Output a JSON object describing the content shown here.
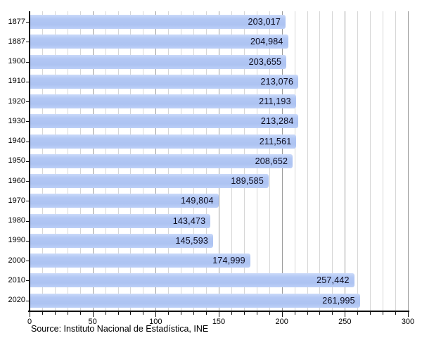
{
  "chart_data": {
    "type": "bar",
    "orientation": "horizontal",
    "title": "",
    "xlabel": "",
    "ylabel": "",
    "categories": [
      "1877",
      "1887",
      "1900",
      "1910",
      "1920",
      "1930",
      "1940",
      "1950",
      "1960",
      "1970",
      "1980",
      "1990",
      "2000",
      "2010",
      "2020"
    ],
    "values": [
      203017,
      204984,
      203655,
      213076,
      211193,
      213284,
      211561,
      208652,
      189585,
      149804,
      143473,
      145593,
      174999,
      257442,
      261995
    ],
    "value_labels": [
      "203,017",
      "204,984",
      "203,655",
      "213,076",
      "211,193",
      "213,284",
      "211,561",
      "208,652",
      "189,585",
      "149,804",
      "143,473",
      "145,593",
      "174,999",
      "257,442",
      "261,995"
    ],
    "x_axis": {
      "min": 0,
      "max": 300,
      "major_ticks": [
        0,
        50,
        100,
        150,
        200,
        250,
        300
      ],
      "major_tick_labels": [
        "0",
        "50",
        "100",
        "150",
        "200",
        "250",
        "300"
      ],
      "minor_tick_step": 10,
      "unit_divisor": 1000
    },
    "grid": "vertical; minor every 10, major every 50",
    "legend": "none",
    "source": "Source: Instituto Nacional de Estadística, INE",
    "colors": {
      "bar": "#b1c6f3",
      "bar_highlight": "#cbdafa",
      "value_label": "#0c0c1e",
      "grid_minor": "#d6d6d6",
      "grid_major": "#9c9c9c",
      "axis": "#111111",
      "tick_label": "#000000"
    }
  }
}
